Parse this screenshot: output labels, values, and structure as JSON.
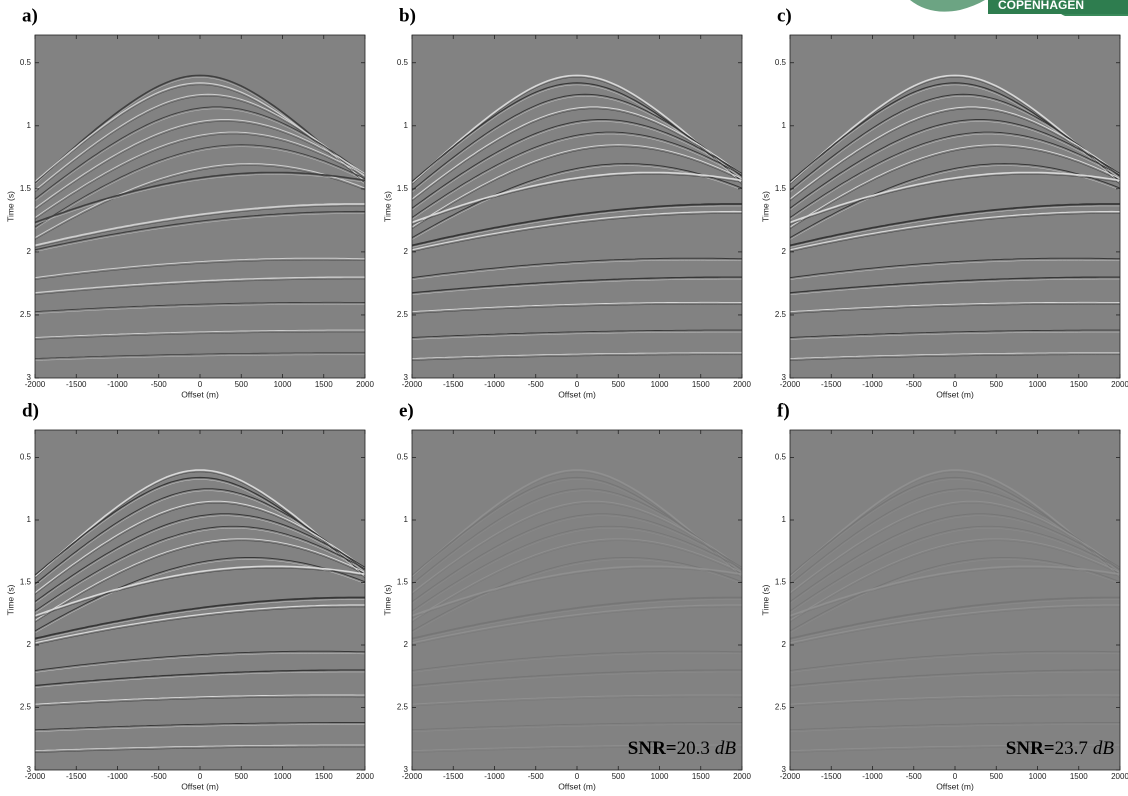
{
  "chart_data": [
    {
      "type": "seismic",
      "panel_label": "a)",
      "xlabel": "Offset (m)",
      "ylabel": "Time (s)",
      "xlim": [
        -2000,
        2000
      ],
      "ylim": [
        0.28,
        3
      ],
      "y_reversed": true,
      "xticks": [
        -2000,
        -1500,
        -1000,
        -500,
        0,
        500,
        1000,
        1500,
        2000
      ],
      "yticks": [
        0.5,
        1,
        1.5,
        2,
        2.5,
        3
      ]
    },
    {
      "type": "seismic",
      "panel_label": "b)",
      "xlabel": "Offset (m)",
      "ylabel": "Time (s)",
      "xlim": [
        -2000,
        2000
      ],
      "ylim": [
        0.28,
        3
      ],
      "y_reversed": true,
      "xticks": [
        -2000,
        -1500,
        -1000,
        -500,
        0,
        500,
        1000,
        1500,
        2000
      ],
      "yticks": [
        0.5,
        1,
        1.5,
        2,
        2.5,
        3
      ]
    },
    {
      "type": "seismic",
      "panel_label": "c)",
      "xlabel": "Offset (m)",
      "ylabel": "Time (s)",
      "xlim": [
        -2000,
        2000
      ],
      "ylim": [
        0.28,
        3
      ],
      "y_reversed": true,
      "xticks": [
        -2000,
        -1500,
        -1000,
        -500,
        0,
        500,
        1000,
        1500,
        2000
      ],
      "yticks": [
        0.5,
        1,
        1.5,
        2,
        2.5,
        3
      ]
    },
    {
      "type": "seismic",
      "panel_label": "d)",
      "xlabel": "Offset (m)",
      "ylabel": "Time (s)",
      "xlim": [
        -2000,
        2000
      ],
      "ylim": [
        0.28,
        3
      ],
      "y_reversed": true,
      "xticks": [
        -2000,
        -1500,
        -1000,
        -500,
        0,
        500,
        1000,
        1500,
        2000
      ],
      "yticks": [
        0.5,
        1,
        1.5,
        2,
        2.5,
        3
      ]
    },
    {
      "type": "seismic",
      "panel_label": "e)",
      "xlabel": "Offset (m)",
      "ylabel": "Time (s)",
      "xlim": [
        -2000,
        2000
      ],
      "ylim": [
        0.28,
        3
      ],
      "y_reversed": true,
      "xticks": [
        -2000,
        -1500,
        -1000,
        -500,
        0,
        500,
        1000,
        1500,
        2000
      ],
      "yticks": [
        0.5,
        1,
        1.5,
        2,
        2.5,
        3
      ],
      "annotation": {
        "label": "SNR=",
        "value": 20.3,
        "unit": "dB"
      }
    },
    {
      "type": "seismic",
      "panel_label": "f)",
      "xlabel": "Offset (m)",
      "ylabel": "Time (s)",
      "xlim": [
        -2000,
        2000
      ],
      "ylim": [
        0.28,
        3
      ],
      "y_reversed": true,
      "xticks": [
        -2000,
        -1500,
        -1000,
        -500,
        0,
        500,
        1000,
        1500,
        2000
      ],
      "yticks": [
        0.5,
        1,
        1.5,
        2,
        2.5,
        3
      ],
      "annotation": {
        "label": "SNR=",
        "value": 23.7,
        "unit": "dB"
      }
    }
  ],
  "logo_text": "COPENHAGEN"
}
